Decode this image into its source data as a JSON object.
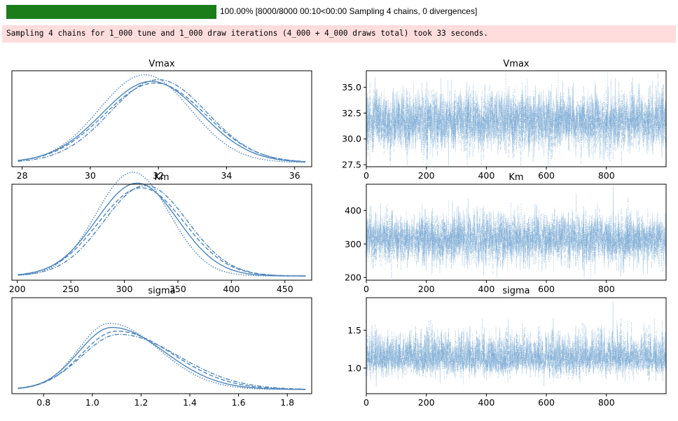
{
  "progress": {
    "fraction": 1.0,
    "text": "100.00% [8000/8000 00:10<00:00 Sampling 4 chains, 0 divergences]",
    "color": "#1a7d1a"
  },
  "stderr": {
    "text": "Sampling 4 chains for 1_000 tune and 1_000 draw iterations (4_000 + 4_000 draws total) took 33 seconds."
  },
  "chart_data": [
    {
      "type": "line",
      "variable": "Vmax",
      "title": "Vmax",
      "xlim": [
        27.7,
        36.5
      ],
      "xticks": [
        28,
        30,
        32,
        34,
        36
      ],
      "density_peak": 0.27,
      "curves": [
        {
          "style": "solid",
          "mean": 31.8,
          "sd": 1.45
        },
        {
          "style": "dashed",
          "mean": 31.9,
          "sd": 1.48
        },
        {
          "style": "dotted",
          "mean": 31.6,
          "sd": 1.34
        },
        {
          "style": "dashdot",
          "mean": 32.0,
          "sd": 1.42
        }
      ]
    },
    {
      "type": "line",
      "variable": "Vmax",
      "title": "Vmax",
      "xlim": [
        0,
        999
      ],
      "ylim": [
        27.3,
        36.6
      ],
      "xticks": [
        0,
        200,
        400,
        600,
        800
      ],
      "yticks": [
        "27.5",
        "30.0",
        "32.5",
        "35.0"
      ],
      "draws": 1000,
      "chains": 4,
      "center": 31.7,
      "spread": 1.45
    },
    {
      "type": "line",
      "variable": "Km",
      "title": "Km",
      "xlim": [
        195,
        475
      ],
      "xticks": [
        200,
        250,
        300,
        350,
        400,
        450
      ],
      "density_peak": 0.009,
      "curves": [
        {
          "style": "solid",
          "mean": 312,
          "sd": 38
        },
        {
          "style": "dashed",
          "mean": 316,
          "sd": 40
        },
        {
          "style": "dotted",
          "mean": 308,
          "sd": 34
        },
        {
          "style": "dashdot",
          "mean": 320,
          "sd": 39
        }
      ]
    },
    {
      "type": "line",
      "variable": "Km",
      "title": "Km",
      "xlim": [
        0,
        999
      ],
      "ylim": [
        192,
        478
      ],
      "xticks": [
        0,
        200,
        400,
        600,
        800
      ],
      "yticks": [
        "200",
        "300",
        "400"
      ],
      "draws": 1000,
      "chains": 4,
      "center": 315,
      "spread": 38
    },
    {
      "type": "line",
      "variable": "sigma",
      "title": "sigma",
      "xlim": [
        0.67,
        1.9
      ],
      "xticks": [
        "0.8",
        "1.0",
        "1.2",
        "1.4",
        "1.6",
        "1.8"
      ],
      "density_peak": 3.2,
      "curves": [
        {
          "style": "solid",
          "mean": 1.08,
          "sd": 0.16
        },
        {
          "style": "dashed",
          "mean": 1.1,
          "sd": 0.17
        },
        {
          "style": "dotted",
          "mean": 1.07,
          "sd": 0.15
        },
        {
          "style": "dashdot",
          "mean": 1.11,
          "sd": 0.18
        }
      ]
    },
    {
      "type": "line",
      "variable": "sigma",
      "title": "sigma",
      "xlim": [
        0,
        999
      ],
      "ylim": [
        0.66,
        1.93
      ],
      "xticks": [
        0,
        200,
        400,
        600,
        800
      ],
      "yticks": [
        "1.0",
        "1.5"
      ],
      "draws": 1000,
      "chains": 4,
      "center": 1.12,
      "spread": 0.18
    }
  ],
  "colors": {
    "line": "#4e86bd",
    "trace": "#6a9fcf",
    "axis": "#000000"
  }
}
